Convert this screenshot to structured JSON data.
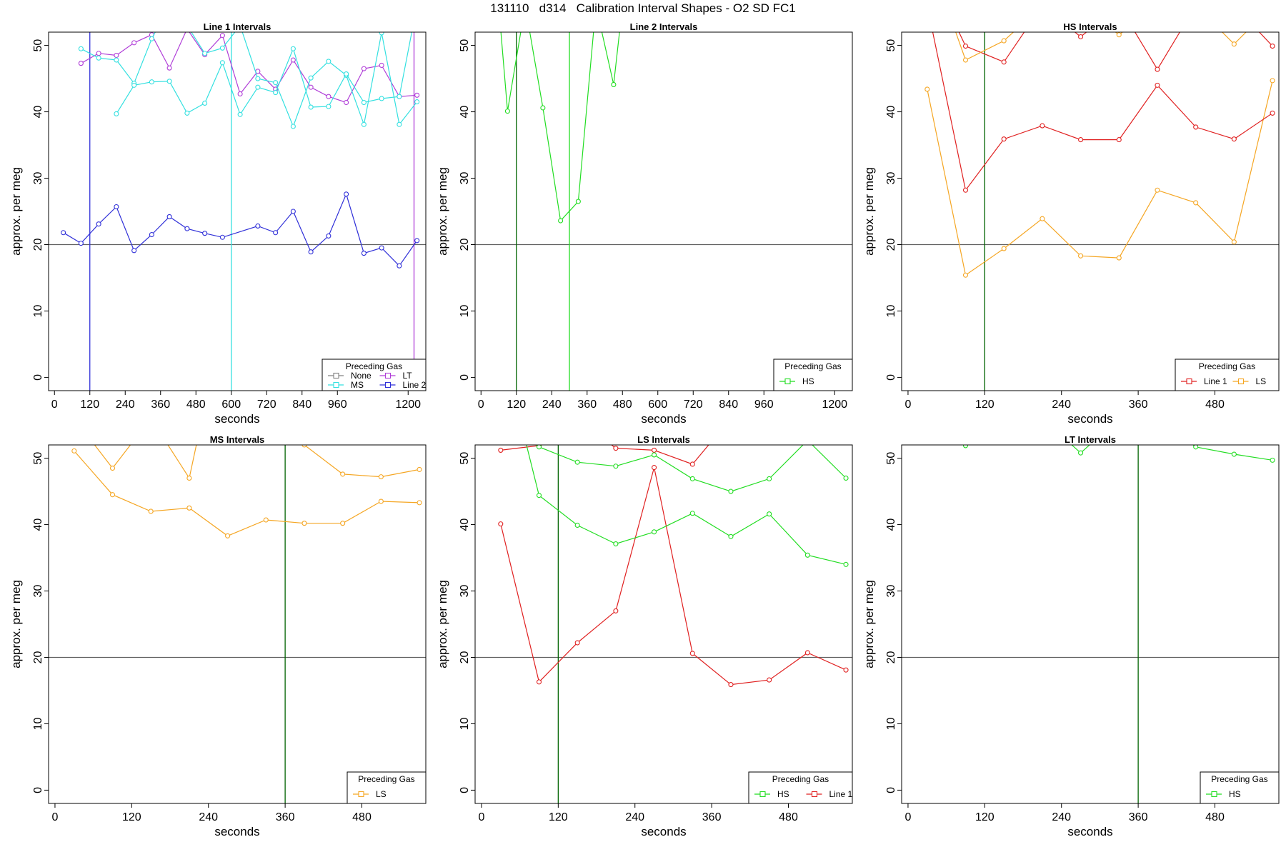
{
  "page": {
    "title": "131110   d314   Calibration Interval Shapes - O2 SD FC1"
  },
  "colors": {
    "None": "#808080",
    "MS": "#33e0e0",
    "LT": "#b03ed8",
    "Line 2": "#3030d8",
    "HS": "#22dd22",
    "Line 1": "#e02020",
    "LS": "#f5a623",
    "frame": "#000000",
    "hline": "#606060",
    "vline": "#006400"
  },
  "chart_data": [
    {
      "name": "Line 1 Intervals",
      "type": "line",
      "title": "Line 1 Intervals",
      "xlabel": "seconds",
      "ylabel": "approx. per meg",
      "xlim": [
        -20,
        1260
      ],
      "ylim": [
        -2,
        52
      ],
      "xticks": [
        0,
        120,
        240,
        360,
        480,
        600,
        720,
        840,
        960,
        1200
      ],
      "yticks": [
        0,
        10,
        20,
        30,
        40,
        50
      ],
      "hline": 20,
      "vlines": [
        {
          "x": 120,
          "color": "Line 2"
        },
        {
          "x": 600,
          "color": "MS"
        },
        {
          "x": 1220,
          "color": "LT"
        }
      ],
      "legend": {
        "title": "Preceding Gas",
        "entries": [
          "None",
          "MS",
          "LT",
          "Line 2"
        ],
        "columns": 2
      },
      "series": [
        {
          "name": "LT",
          "x": [
            90,
            150,
            210,
            270,
            330,
            390,
            450,
            510,
            570,
            630,
            690,
            750,
            810,
            870,
            930,
            990,
            1050,
            1110,
            1170,
            1230
          ],
          "y": [
            47.3,
            48.8,
            48.5,
            50.4,
            51.6,
            46.6,
            52.5,
            48.6,
            51.5,
            42.7,
            46.1,
            43.4,
            47.8,
            43.7,
            42.3,
            41.4,
            46.5,
            47.0,
            42.3,
            42.5
          ]
        },
        {
          "name": "MS",
          "x": [
            90,
            150,
            210,
            270,
            330,
            390,
            450,
            510,
            570,
            630,
            690,
            750,
            810,
            870,
            930,
            990,
            1050,
            1110,
            1170,
            1230
          ],
          "y": [
            49.5,
            48.1,
            47.8,
            44.3,
            51.0,
            56.0,
            53.0,
            48.8,
            49.6,
            53.0,
            45.0,
            44.4,
            37.8,
            45.1,
            47.6,
            45.5,
            38.1,
            51.9,
            38.1,
            41.5
          ]
        },
        {
          "name": "MS",
          "x": [
            210,
            270,
            330,
            390,
            450,
            510,
            570,
            630,
            690,
            750,
            810,
            870,
            930,
            990,
            1050,
            1110,
            1170,
            1230
          ],
          "y": [
            39.7,
            44.0,
            44.5,
            44.6,
            39.8,
            41.3,
            47.4,
            39.6,
            43.7,
            42.9,
            49.5,
            40.7,
            40.8,
            45.7,
            41.4,
            42.0,
            42.3,
            56.0
          ]
        },
        {
          "name": "Line 2",
          "x": [
            30,
            90,
            150,
            210,
            270,
            330,
            390,
            450,
            510,
            570,
            690,
            750,
            810,
            870,
            930,
            990,
            1050,
            1110,
            1170,
            1230
          ],
          "y": [
            21.8,
            20.2,
            23.1,
            25.7,
            19.1,
            21.5,
            24.2,
            22.4,
            21.7,
            21.1,
            22.8,
            21.8,
            25.0,
            18.9,
            21.3,
            27.6,
            18.7,
            19.5,
            16.8,
            20.6
          ]
        }
      ]
    },
    {
      "name": "Line 2 Intervals",
      "type": "line",
      "title": "Line 2 Intervals",
      "xlabel": "seconds",
      "ylabel": "approx. per meg",
      "xlim": [
        -20,
        1260
      ],
      "ylim": [
        -2,
        52
      ],
      "xticks": [
        0,
        120,
        240,
        360,
        480,
        600,
        720,
        840,
        960,
        1200
      ],
      "yticks": [
        0,
        10,
        20,
        30,
        40,
        50
      ],
      "hline": 20,
      "vlines": [
        {
          "x": 120,
          "color": "vline"
        },
        {
          "x": 300,
          "color": "HS"
        }
      ],
      "legend": {
        "title": "Preceding Gas",
        "entries": [
          "HS"
        ],
        "columns": 1
      },
      "series": [
        {
          "name": "HS",
          "x": [
            60,
            90,
            150,
            210,
            270,
            330,
            390,
            450,
            480
          ],
          "y": [
            56.0,
            40.1,
            56.0,
            40.6,
            23.6,
            26.5,
            56.0,
            44.1,
            56.0
          ]
        }
      ]
    },
    {
      "name": "HS Intervals",
      "type": "line",
      "title": "HS Intervals",
      "xlabel": "seconds",
      "ylabel": "approx. per meg",
      "xlim": [
        -10,
        580
      ],
      "ylim": [
        -2,
        52
      ],
      "xticks": [
        0,
        120,
        240,
        360,
        480
      ],
      "yticks": [
        0,
        10,
        20,
        30,
        40,
        50
      ],
      "hline": 20,
      "vlines": [
        {
          "x": 120,
          "color": "vline"
        }
      ],
      "legend": {
        "title": "Preceding Gas",
        "entries": [
          "Line 1",
          "LS"
        ],
        "columns": 2
      },
      "series": [
        {
          "name": "LS",
          "x": [
            30,
            90,
            150,
            210,
            270,
            330,
            390,
            450,
            510,
            570
          ],
          "y": [
            43.4,
            15.4,
            19.4,
            23.9,
            18.3,
            18.0,
            28.2,
            26.3,
            20.4,
            44.7
          ]
        },
        {
          "name": "Line 1",
          "x": [
            30,
            90,
            150,
            210,
            270,
            330,
            390,
            450,
            510,
            570
          ],
          "y": [
            56.0,
            28.2,
            35.9,
            37.9,
            35.8,
            35.8,
            44.0,
            37.7,
            35.9,
            39.8
          ]
        },
        {
          "name": "Line 1",
          "x": [
            60,
            90,
            150,
            210,
            270,
            330,
            390,
            450,
            510,
            570
          ],
          "y": [
            56.0,
            49.9,
            47.5,
            56.0,
            51.3,
            56.0,
            46.4,
            56.0,
            56.0,
            49.9
          ]
        },
        {
          "name": "LS",
          "x": [
            60,
            90,
            150,
            210,
            270,
            330,
            390,
            450,
            510,
            570
          ],
          "y": [
            56.0,
            47.8,
            50.7,
            56.0,
            56.0,
            51.6,
            56.0,
            56.0,
            50.2,
            56.0
          ]
        }
      ]
    },
    {
      "name": "MS Intervals",
      "type": "line",
      "title": "MS Intervals",
      "xlabel": "seconds",
      "ylabel": "approx. per meg",
      "xlim": [
        -10,
        580
      ],
      "ylim": [
        -2,
        52
      ],
      "xticks": [
        0,
        120,
        240,
        360,
        480
      ],
      "yticks": [
        0,
        10,
        20,
        30,
        40,
        50
      ],
      "hline": 20,
      "vlines": [
        {
          "x": 360,
          "color": "vline"
        }
      ],
      "legend": {
        "title": "Preceding Gas",
        "entries": [
          "LS"
        ],
        "columns": 1
      },
      "series": [
        {
          "name": "LS",
          "x": [
            30,
            90,
            150,
            210,
            270,
            330,
            390,
            450,
            510,
            570
          ],
          "y": [
            51.1,
            44.5,
            42.0,
            42.5,
            38.3,
            40.7,
            40.2,
            40.2,
            43.5,
            43.3
          ]
        },
        {
          "name": "LS",
          "x": [
            30,
            90,
            150,
            210,
            230,
            390,
            450,
            510,
            570
          ],
          "y": [
            56.0,
            48.5,
            56.0,
            47.0,
            56.0,
            52.0,
            47.6,
            47.2,
            48.3
          ]
        }
      ]
    },
    {
      "name": "LS Intervals",
      "type": "line",
      "title": "LS Intervals",
      "xlabel": "seconds",
      "ylabel": "approx. per meg",
      "xlim": [
        -10,
        580
      ],
      "ylim": [
        -2,
        52
      ],
      "xticks": [
        0,
        120,
        240,
        360,
        480
      ],
      "yticks": [
        0,
        10,
        20,
        30,
        40,
        50
      ],
      "hline": 20,
      "vlines": [
        {
          "x": 120,
          "color": "vline"
        }
      ],
      "legend": {
        "title": "Preceding Gas",
        "entries": [
          "HS",
          "Line 1"
        ],
        "columns": 2
      },
      "series": [
        {
          "name": "Line 1",
          "x": [
            30,
            90,
            150,
            210,
            270,
            330,
            390,
            450,
            510,
            570
          ],
          "y": [
            40.1,
            16.3,
            22.2,
            27.0,
            48.6,
            20.6,
            15.9,
            16.6,
            20.7,
            18.1
          ]
        },
        {
          "name": "Line 1",
          "x": [
            30,
            90,
            150,
            210,
            270,
            330,
            390
          ],
          "y": [
            51.2,
            51.9,
            56.0,
            51.5,
            51.2,
            49.1,
            56.0
          ]
        },
        {
          "name": "HS",
          "x": [
            60,
            90,
            150,
            210,
            270,
            330,
            390,
            450,
            510,
            570
          ],
          "y": [
            56.0,
            44.4,
            39.9,
            37.1,
            38.9,
            41.7,
            38.2,
            41.6,
            35.4,
            34.0
          ]
        },
        {
          "name": "HS",
          "x": [
            30,
            90,
            150,
            210,
            270,
            330,
            390,
            450,
            510,
            570
          ],
          "y": [
            56.0,
            51.7,
            49.4,
            48.8,
            50.5,
            46.9,
            45.0,
            46.9,
            52.7,
            47.0
          ]
        }
      ]
    },
    {
      "name": "LT Intervals",
      "type": "line",
      "title": "LT Intervals",
      "xlabel": "seconds",
      "ylabel": "approx. per meg",
      "xlim": [
        -10,
        580
      ],
      "ylim": [
        -2,
        52
      ],
      "xticks": [
        0,
        120,
        240,
        360,
        480
      ],
      "yticks": [
        0,
        10,
        20,
        30,
        40,
        50
      ],
      "hline": 20,
      "vlines": [
        {
          "x": 360,
          "color": "vline"
        }
      ],
      "legend": {
        "title": "Preceding Gas",
        "entries": [
          "HS"
        ],
        "columns": 1
      },
      "series": [
        {
          "name": "HS",
          "x": [
            30,
            90,
            150,
            210,
            270,
            330,
            390,
            450,
            510,
            570
          ],
          "y": [
            56.0,
            51.9,
            56.0,
            56.0,
            50.8,
            56.0,
            56.0,
            51.7,
            50.6,
            49.7
          ]
        }
      ]
    }
  ]
}
